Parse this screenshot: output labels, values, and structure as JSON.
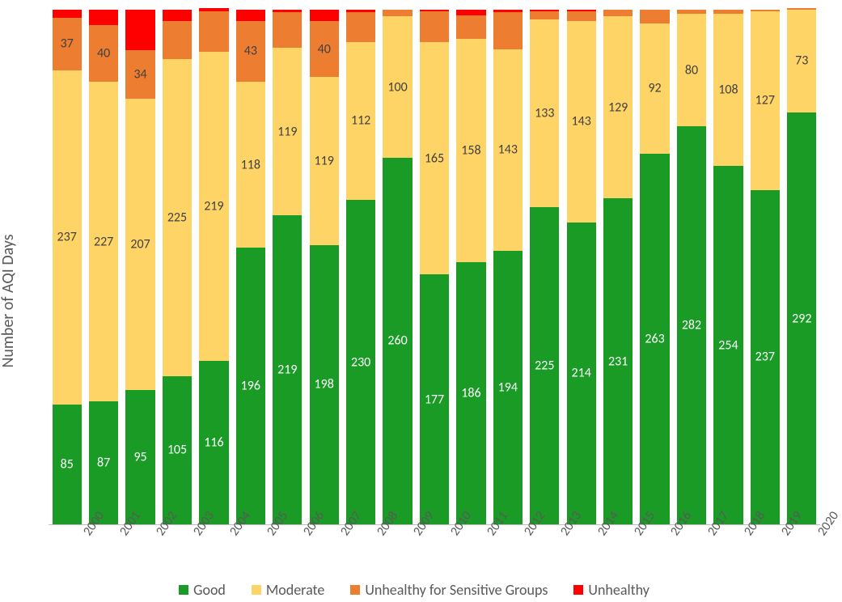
{
  "chart": {
    "type": "stacked-bar",
    "ylabel": "Number of AQI Days",
    "label_fontsize": 20,
    "tick_fontsize": 16,
    "ymax": 366,
    "background_color": "#ffffff",
    "axis_color": "#bfbfbf",
    "tick_label_color": "#595959",
    "small_label_threshold": 30,
    "series": [
      {
        "key": "good",
        "name": "Good",
        "color": "#1a9b26",
        "label_color": "#ffffff"
      },
      {
        "key": "moderate",
        "name": "Moderate",
        "color": "#ffd467",
        "label_color": "#404040"
      },
      {
        "key": "sensitive",
        "name": "Unhealthy for Sensitive Groups",
        "color": "#ed7d31",
        "label_color": "#404040"
      },
      {
        "key": "unhealthy",
        "name": "Unhealthy",
        "color": "#ff0000",
        "label_color": "#404040"
      }
    ],
    "categories": [
      "2000",
      "2001",
      "2002",
      "2003",
      "2004",
      "2005",
      "2006",
      "2007",
      "2008",
      "2009",
      "2010",
      "2011",
      "2012",
      "2013",
      "2014",
      "2015",
      "2016",
      "2017",
      "2018",
      "2019",
      "2020"
    ],
    "data": {
      "good": [
        85,
        87,
        95,
        105,
        116,
        196,
        219,
        198,
        230,
        260,
        177,
        186,
        194,
        225,
        214,
        231,
        263,
        282,
        254,
        237,
        292
      ],
      "moderate": [
        237,
        227,
        207,
        225,
        219,
        118,
        119,
        119,
        112,
        100,
        165,
        158,
        143,
        133,
        143,
        129,
        92,
        80,
        108,
        127,
        73
      ],
      "sensitive": [
        37,
        40,
        34,
        27,
        29,
        43,
        25,
        40,
        21,
        5,
        22,
        17,
        26,
        6,
        7,
        5,
        10,
        3,
        3,
        1,
        1
      ],
      "unhealthy": [
        6,
        11,
        29,
        8,
        2,
        8,
        2,
        8,
        2,
        0,
        1,
        4,
        2,
        1,
        1,
        0,
        0,
        0,
        0,
        0,
        0
      ]
    }
  }
}
